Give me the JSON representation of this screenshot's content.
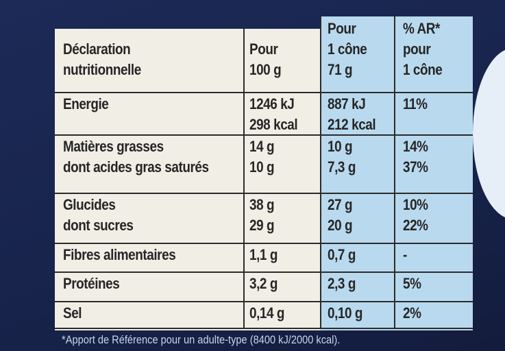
{
  "table": {
    "header": [
      [
        "Déclaration",
        "nutritionnelle"
      ],
      [
        "Pour",
        "100 g"
      ],
      [
        "Pour",
        "1 cône",
        "71 g"
      ],
      [
        "% AR*",
        "pour",
        "1 cône"
      ]
    ],
    "rows": [
      [
        [
          "Energie"
        ],
        [
          "1246 kJ",
          "298 kcal"
        ],
        [
          "887 kJ",
          "212 kcal"
        ],
        [
          "11%"
        ]
      ],
      [
        [
          "Matières grasses",
          "dont acides gras saturés"
        ],
        [
          "14 g",
          "10 g"
        ],
        [
          "10 g",
          "7,3 g"
        ],
        [
          "14%",
          "37%"
        ]
      ],
      [
        [
          "Glucides",
          "dont sucres"
        ],
        [
          "38 g",
          "29 g"
        ],
        [
          "27 g",
          "20 g"
        ],
        [
          "10%",
          "22%"
        ]
      ],
      [
        [
          "Fibres alimentaires"
        ],
        [
          "1,1 g"
        ],
        [
          "0,7 g"
        ],
        [
          "-"
        ]
      ],
      [
        [
          "Protéines"
        ],
        [
          "3,2 g"
        ],
        [
          "2,3 g"
        ],
        [
          "5%"
        ]
      ],
      [
        [
          "Sel"
        ],
        [
          "0,14 g"
        ],
        [
          "0,10 g"
        ],
        [
          "2%"
        ]
      ]
    ],
    "footnote": "*Apport de Référence pour un adulte-type (8400 kJ/2000 kcal)."
  }
}
